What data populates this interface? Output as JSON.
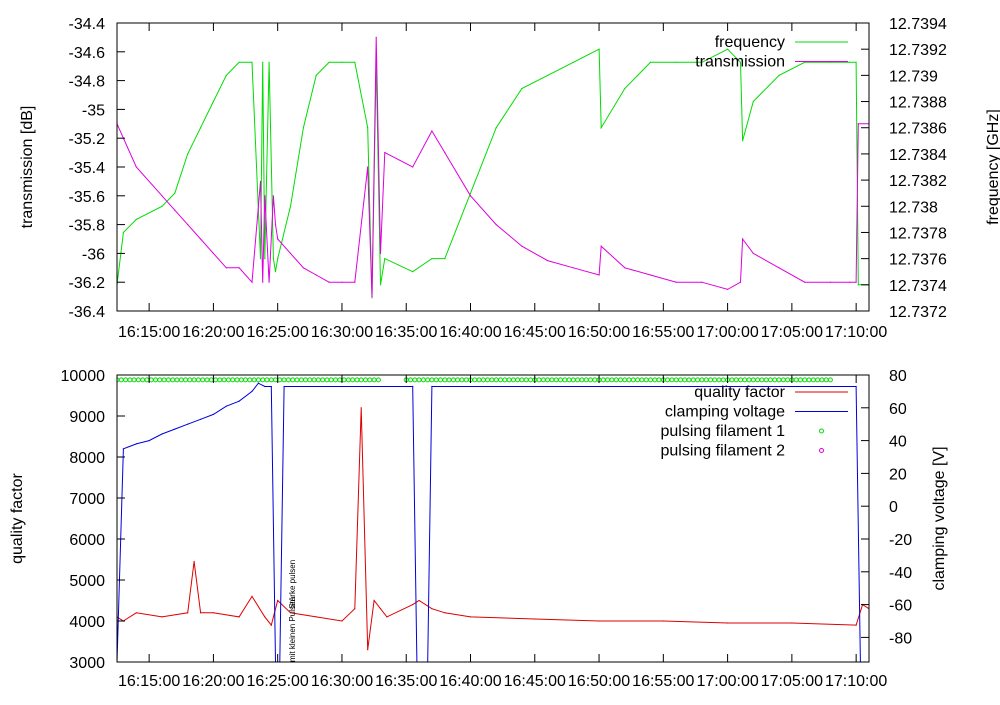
{
  "figure": {
    "background": "#ffffff"
  },
  "chart_data": [
    {
      "type": "line",
      "time_ticks": [
        "16:15:00",
        "16:20:00",
        "16:25:00",
        "16:30:00",
        "16:35:00",
        "16:40:00",
        "16:45:00",
        "16:50:00",
        "16:55:00",
        "17:00:00",
        "17:05:00",
        "17:10:00"
      ],
      "time_range": [
        "16:12:30",
        "17:11:00"
      ],
      "ylabel": "transmission [dB]",
      "y2label": "frequency [GHz]",
      "ylim": [
        -36.4,
        -34.4
      ],
      "y2lim": [
        12.7372,
        12.7394
      ],
      "yticks": [
        "-34.4",
        "-34.6",
        "-34.8",
        "-35",
        "-35.2",
        "-35.4",
        "-35.6",
        "-35.8",
        "-36",
        "-36.2",
        "-36.4"
      ],
      "y2ticks": [
        "12.7394",
        "12.7392",
        "12.739",
        "12.7388",
        "12.7386",
        "12.7384",
        "12.7382",
        "12.738",
        "12.7378",
        "12.7376",
        "12.7374",
        "12.7372"
      ],
      "grid": false,
      "legend_position": "top-right",
      "series": [
        {
          "name": "frequency",
          "axis": "right",
          "color": "#00dd00",
          "style": "line",
          "x": [
            "16:12:30",
            "16:13:00",
            "16:14:00",
            "16:16:00",
            "16:17:00",
            "16:18:00",
            "16:19:00",
            "16:20:00",
            "16:21:00",
            "16:22:00",
            "16:23:00",
            "16:23:40",
            "16:23:50",
            "16:24:00",
            "16:24:20",
            "16:24:40",
            "16:24:50",
            "16:25:00",
            "16:26:00",
            "16:27:00",
            "16:28:00",
            "16:29:00",
            "16:30:00",
            "16:31:00",
            "16:32:00",
            "16:32:20",
            "16:32:40",
            "16:33:00",
            "16:33:20",
            "16:35:30",
            "16:37:00",
            "16:38:00",
            "16:40:00",
            "16:42:00",
            "16:44:00",
            "16:46:00",
            "16:48:00",
            "16:50:00",
            "16:50:10",
            "16:52:00",
            "16:54:00",
            "16:56:00",
            "16:58:00",
            "17:00:00",
            "17:01:00",
            "17:01:10",
            "17:02:00",
            "17:04:00",
            "17:06:00",
            "17:08:00",
            "17:09:30",
            "17:10:00",
            "17:10:10",
            "17:11:00"
          ],
          "values": [
            12.7374,
            12.7378,
            12.7379,
            12.738,
            12.7381,
            12.7384,
            12.7386,
            12.7388,
            12.739,
            12.7391,
            12.7391,
            12.7376,
            12.7391,
            12.7376,
            12.7391,
            12.7376,
            12.7375,
            12.7376,
            12.738,
            12.7386,
            12.739,
            12.7391,
            12.7391,
            12.7391,
            12.7386,
            12.7373,
            12.7391,
            12.7374,
            12.7376,
            12.7375,
            12.7376,
            12.7376,
            12.7381,
            12.7386,
            12.7389,
            12.739,
            12.7391,
            12.7392,
            12.7386,
            12.7389,
            12.7391,
            12.7391,
            12.7391,
            12.7392,
            12.7391,
            12.7385,
            12.7388,
            12.739,
            12.7391,
            12.7391,
            12.7391,
            12.7391,
            12.7374,
            12.7374
          ]
        },
        {
          "name": "transmission",
          "axis": "left",
          "color": "#dd00dd",
          "style": "line",
          "x": [
            "16:12:30",
            "16:13:00",
            "16:14:00",
            "16:16:00",
            "16:17:00",
            "16:18:00",
            "16:19:00",
            "16:20:00",
            "16:21:00",
            "16:22:00",
            "16:23:00",
            "16:23:40",
            "16:23:50",
            "16:24:00",
            "16:24:20",
            "16:24:40",
            "16:24:50",
            "16:25:00",
            "16:26:00",
            "16:27:00",
            "16:28:00",
            "16:29:00",
            "16:30:00",
            "16:31:00",
            "16:32:00",
            "16:32:20",
            "16:32:40",
            "16:33:00",
            "16:33:20",
            "16:35:30",
            "16:37:00",
            "16:38:00",
            "16:40:00",
            "16:42:00",
            "16:44:00",
            "16:46:00",
            "16:48:00",
            "16:50:00",
            "16:50:10",
            "16:52:00",
            "16:54:00",
            "16:56:00",
            "16:58:00",
            "17:00:00",
            "17:01:00",
            "17:01:10",
            "17:02:00",
            "17:04:00",
            "17:06:00",
            "17:08:00",
            "17:09:30",
            "17:10:00",
            "17:10:10",
            "17:11:00"
          ],
          "values": [
            -35.1,
            -35.2,
            -35.4,
            -35.6,
            -35.7,
            -35.8,
            -35.9,
            -36.0,
            -36.1,
            -36.1,
            -36.2,
            -35.5,
            -36.2,
            -35.6,
            -36.2,
            -35.6,
            -35.8,
            -35.9,
            -36.0,
            -36.1,
            -36.15,
            -36.2,
            -36.2,
            -36.2,
            -35.4,
            -36.3,
            -34.5,
            -36.0,
            -35.3,
            -35.4,
            -35.15,
            -35.3,
            -35.6,
            -35.8,
            -35.95,
            -36.05,
            -36.1,
            -36.15,
            -35.95,
            -36.1,
            -36.15,
            -36.2,
            -36.2,
            -36.25,
            -36.2,
            -35.9,
            -36.0,
            -36.1,
            -36.2,
            -36.2,
            -36.2,
            -36.2,
            -35.1,
            -35.1
          ]
        }
      ]
    },
    {
      "type": "line",
      "time_ticks": [
        "16:15:00",
        "16:20:00",
        "16:25:00",
        "16:30:00",
        "16:35:00",
        "16:40:00",
        "16:45:00",
        "16:50:00",
        "16:55:00",
        "17:00:00",
        "17:05:00",
        "17:10:00"
      ],
      "time_range": [
        "16:12:30",
        "17:11:00"
      ],
      "ylabel": "quality factor",
      "y2label": "clamping voltage [V]",
      "ylim": [
        3000,
        10000
      ],
      "y2lim": [
        -95,
        80
      ],
      "yticks": [
        "10000",
        "9000",
        "8000",
        "7000",
        "6000",
        "5000",
        "4000",
        "3000"
      ],
      "y2ticks": [
        "80",
        "60",
        "40",
        "20",
        "0",
        "-20",
        "-40",
        "-60",
        "-80"
      ],
      "grid": false,
      "legend_position": "top-right",
      "annotations": [
        {
          "text": "mit kleinen Pulsen",
          "x": "16:26:20",
          "y": 3000
        },
        {
          "text": "Stärke pulsen",
          "x": "16:26:20",
          "y": 4300
        }
      ],
      "series": [
        {
          "name": "quality factor",
          "axis": "left",
          "color": "#dd0000",
          "style": "line",
          "x": [
            "16:12:30",
            "16:13:00",
            "16:14:00",
            "16:16:00",
            "16:18:00",
            "16:18:30",
            "16:19:00",
            "16:20:00",
            "16:22:00",
            "16:23:00",
            "16:24:00",
            "16:24:30",
            "16:25:00",
            "16:26:00",
            "16:28:00",
            "16:30:00",
            "16:31:00",
            "16:31:30",
            "16:32:00",
            "16:32:30",
            "16:33:00",
            "16:33:30",
            "16:35:30",
            "16:36:00",
            "16:37:00",
            "16:38:00",
            "16:40:00",
            "16:45:00",
            "16:50:00",
            "16:55:00",
            "17:00:00",
            "17:05:00",
            "17:10:00",
            "17:10:30",
            "17:11:00"
          ],
          "values": [
            4100,
            4000,
            4200,
            4100,
            4200,
            5450,
            4200,
            4200,
            4100,
            4600,
            4100,
            3900,
            4500,
            4200,
            4100,
            4000,
            4300,
            9200,
            3300,
            4500,
            4300,
            4100,
            4400,
            4500,
            4300,
            4200,
            4100,
            4050,
            4000,
            4000,
            3950,
            3950,
            3900,
            4400,
            4300
          ]
        },
        {
          "name": "clamping voltage",
          "axis": "right",
          "color": "#0000dd",
          "style": "line",
          "x": [
            "16:12:30",
            "16:13:00",
            "16:14:00",
            "16:15:00",
            "16:16:00",
            "16:17:00",
            "16:18:00",
            "16:19:00",
            "16:20:00",
            "16:21:00",
            "16:22:00",
            "16:23:00",
            "16:23:30",
            "16:24:00",
            "16:24:30",
            "16:24:50",
            "16:25:10",
            "16:25:30",
            "16:30:00",
            "16:35:00",
            "16:35:30",
            "16:35:50",
            "16:36:40",
            "16:37:00",
            "16:45:00",
            "17:00:00",
            "17:10:00",
            "17:10:20",
            "17:10:40",
            "17:11:00"
          ],
          "values": [
            -95,
            35,
            38,
            40,
            44,
            47,
            50,
            53,
            56,
            61,
            64,
            70,
            75,
            73,
            73,
            -95,
            -95,
            73,
            73,
            73,
            73,
            -95,
            -95,
            73,
            73,
            73,
            73,
            -95,
            -95,
            -95
          ]
        },
        {
          "name": "pulsing filament 1",
          "axis": "right",
          "color": "#00dd00",
          "style": "points",
          "segments": [
            [
              "16:12:30",
              "16:33:00"
            ],
            [
              "16:35:00",
              "17:08:00"
            ]
          ],
          "value": 77
        },
        {
          "name": "pulsing filament 2",
          "axis": "right",
          "color": "#dd00dd",
          "style": "points",
          "segments": [],
          "value": 77
        }
      ]
    }
  ]
}
